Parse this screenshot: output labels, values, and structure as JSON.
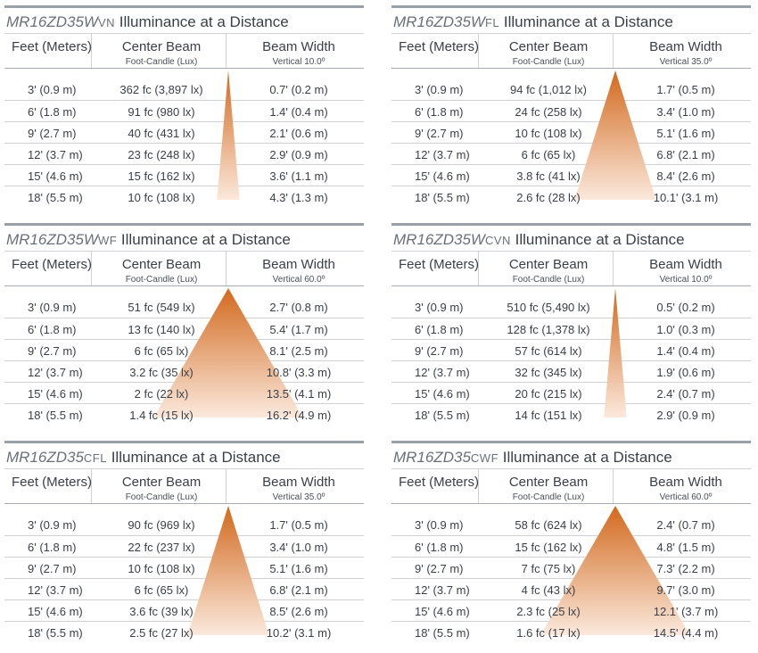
{
  "headers": {
    "feet": "Feet (Meters)",
    "center": "Center Beam",
    "width": "Beam Width",
    "units": "Foot-Candle (Lux)"
  },
  "title_suffix": "Illuminance at a Distance",
  "distances": [
    "3' (0.9 m)",
    "6' (1.8 m)",
    "9' (2.7 m)",
    "12' (3.7 m)",
    "15' (4.6 m)",
    "18' (5.5 m)"
  ],
  "panels": [
    {
      "model": "MR16ZD35W",
      "suffix": "VN",
      "vertical": "Vertical 10.0º",
      "beam_angle": 10.0,
      "center": [
        "362 fc (3,897 lx)",
        "91 fc (980 lx)",
        "40 fc (431 lx)",
        "23 fc (248 lx)",
        "15 fc (162 lx)",
        "10 fc (108 lx)"
      ],
      "width": [
        "0.7' (0.2 m)",
        "1.4' (0.4 m)",
        "2.1' (0.6 m)",
        "2.9' (0.9 m)",
        "3.6' (1.1 m)",
        "4.3' (1.3 m)"
      ]
    },
    {
      "model": "MR16ZD35W",
      "suffix": "FL",
      "vertical": "Vertical 35.0º",
      "beam_angle": 35.0,
      "center": [
        "94 fc (1,012 lx)",
        "24 fc (258 lx)",
        "10 fc (108 lx)",
        "6 fc (65 lx)",
        "3.8 fc (41 lx)",
        "2.6 fc (28 lx)"
      ],
      "width": [
        "1.7' (0.5 m)",
        "3.4' (1.0 m)",
        "5.1' (1.6 m)",
        "6.8' (2.1 m)",
        "8.4' (2.6 m)",
        "10.1' (3.1 m)"
      ]
    },
    {
      "model": "MR16ZD35W",
      "suffix": "WF",
      "vertical": "Vertical 60.0º",
      "beam_angle": 60.0,
      "center": [
        "51 fc (549 lx)",
        "13 fc (140 lx)",
        "6 fc (65 lx)",
        "3.2 fc (35 lx)",
        "2 fc (22 lx)",
        "1.4 fc (15 lx)"
      ],
      "width": [
        "2.7' (0.8 m)",
        "5.4' (1.7 m)",
        "8.1' (2.5 m)",
        "10.8' (3.3 m)",
        "13.5' (4.1 m)",
        "16.2' (4.9 m)"
      ]
    },
    {
      "model": "MR16ZD35W",
      "suffix": "CVN",
      "vertical": "Vertical 10.0º",
      "beam_angle": 10.0,
      "center": [
        "510 fc (5,490 lx)",
        "128 fc (1,378 lx)",
        "57 fc (614 lx)",
        "32 fc (345 lx)",
        "20 fc (215 lx)",
        "14 fc (151 lx)"
      ],
      "width": [
        "0.5' (0.2 m)",
        "1.0' (0.3 m)",
        "1.4' (0.4 m)",
        "1.9' (0.6 m)",
        "2.4' (0.7 m)",
        "2.9' (0.9 m)"
      ]
    },
    {
      "model": "MR16ZD35",
      "suffix": "CFL",
      "vertical": "Vertical 35.0º",
      "beam_angle": 35.0,
      "center": [
        "90 fc (969 lx)",
        "22 fc (237 lx)",
        "10 fc (108 lx)",
        "6 fc (65 lx)",
        "3.6 fc (39 lx)",
        "2.5 fc (27 lx)"
      ],
      "width": [
        "1.7' (0.5 m)",
        "3.4' (1.0 m)",
        "5.1' (1.6 m)",
        "6.8' (2.1 m)",
        "8.5' (2.6 m)",
        "10.2' (3.1 m)"
      ]
    },
    {
      "model": "MR16ZD35",
      "suffix": "CWF",
      "vertical": "Vertical 60.0º",
      "beam_angle": 60.0,
      "center": [
        "58 fc (624 lx)",
        "15 fc (162 lx)",
        "7 fc (75 lx)",
        "4 fc (43 lx)",
        "2.3 fc (25 lx)",
        "1.6 fc (17 lx)"
      ],
      "width": [
        "2.4' (0.7 m)",
        "4.8' (1.5 m)",
        "7.3' (2.2 m)",
        "9.7' (3.0 m)",
        "12.1' (3.7 m)",
        "14.5' (4.4 m)"
      ]
    }
  ],
  "colors": {
    "beam_top": "#d2691e",
    "beam_bottom": "#fbe9dc",
    "rule": "#cfd3d8",
    "topbar": "#9aa0a8"
  }
}
